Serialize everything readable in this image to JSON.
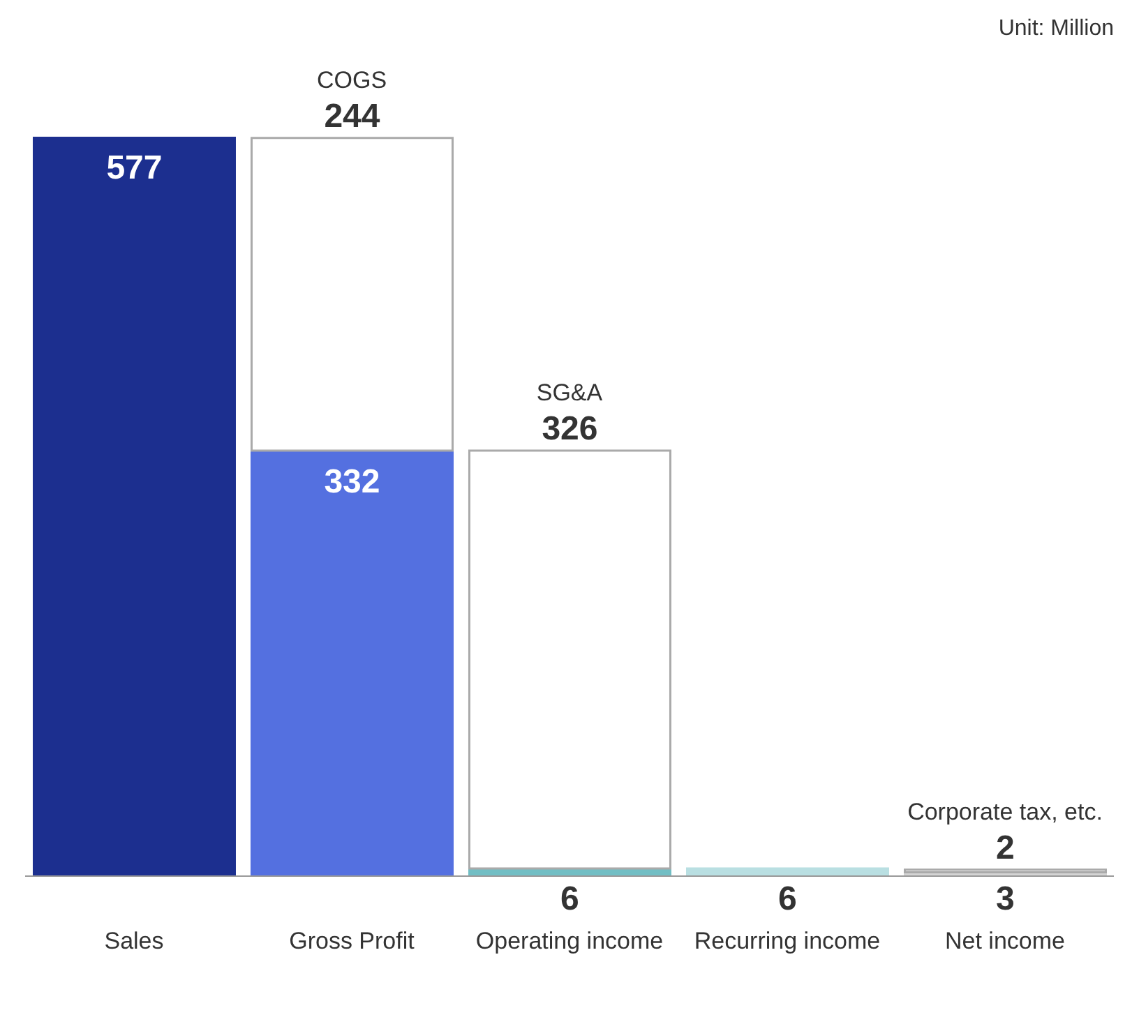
{
  "chart_data": {
    "type": "bar",
    "categories": [
      "Sales",
      "Gross Profit",
      "Operating income",
      "Recurring income",
      "Net income"
    ],
    "stacked": true,
    "series": [
      {
        "values": [
          577,
          332,
          6,
          6,
          3
        ],
        "colors": [
          "#1c2f8f",
          "#5470e0",
          "#72bec4",
          "#b9dfe2",
          "#d4d4d4"
        ]
      },
      {
        "values": [
          null,
          244,
          326,
          null,
          2
        ],
        "color": "#ffffff"
      }
    ],
    "data_labels": true,
    "tick_labels": "x",
    "annotations": [
      {
        "text": "COGS",
        "x": "Gross Profit",
        "y": 576
      },
      {
        "text": "SG&A",
        "x": "Operating income",
        "y": 332
      },
      {
        "text": "Corporate tax, etc.",
        "x": "Net income",
        "y": 5
      },
      "Unit: Million"
    ]
  }
}
